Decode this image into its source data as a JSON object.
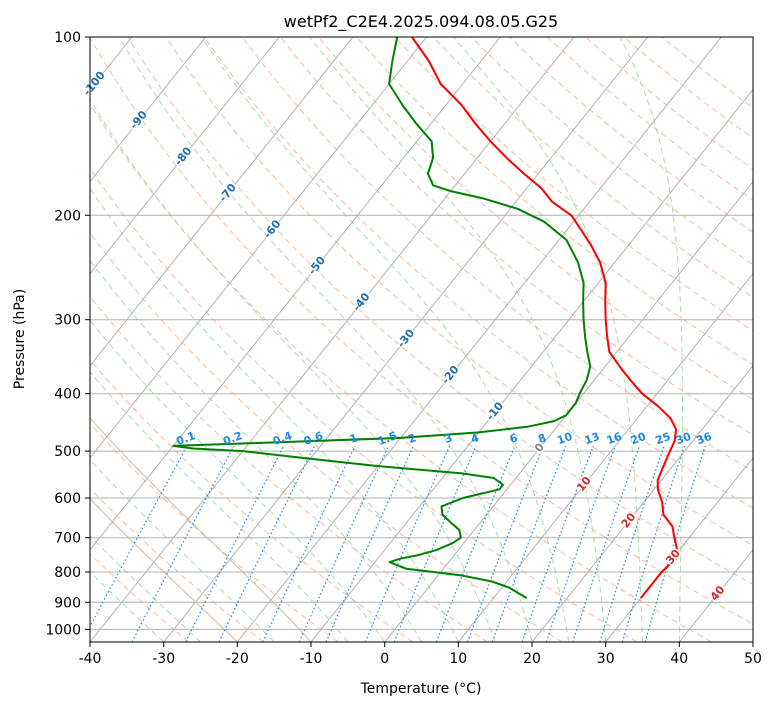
{
  "chart_data": {
    "type": "line",
    "title": "wetPf2_C2E4.2025.094.08.05.G25",
    "xlabel": "Temperature (°C)",
    "ylabel": "Pressure (hPa)",
    "xlim": [
      -40,
      50
    ],
    "ylim": [
      1050,
      100
    ],
    "y_scale": "log",
    "x_ticks": [
      "-40",
      "-30",
      "-20",
      "-10",
      "0",
      "10",
      "20",
      "30",
      "40",
      "50"
    ],
    "y_ticks": [
      "100",
      "200",
      "300",
      "400",
      "500",
      "600",
      "700",
      "800",
      "900",
      "1000"
    ],
    "grid": true,
    "series": [
      {
        "color": "#ff0000",
        "points": [
          [
            30,
            885
          ],
          [
            30,
            850
          ],
          [
            30,
            800
          ],
          [
            30.5,
            760
          ],
          [
            29.5,
            730
          ],
          [
            28,
            700
          ],
          [
            26.5,
            670
          ],
          [
            24,
            640
          ],
          [
            22.5,
            610
          ],
          [
            20.5,
            580
          ],
          [
            19.5,
            560
          ],
          [
            19,
            540
          ],
          [
            18.5,
            520
          ],
          [
            18,
            500
          ],
          [
            17.5,
            480
          ],
          [
            16.5,
            460
          ],
          [
            14.5,
            440
          ],
          [
            11.5,
            420
          ],
          [
            8,
            400
          ],
          [
            5,
            380
          ],
          [
            2,
            360
          ],
          [
            -1,
            340
          ],
          [
            -3,
            320
          ],
          [
            -5,
            300
          ],
          [
            -7,
            280
          ],
          [
            -9,
            260
          ],
          [
            -12,
            240
          ],
          [
            -15,
            225
          ],
          [
            -18,
            212
          ],
          [
            -21,
            200
          ],
          [
            -25,
            190
          ],
          [
            -28,
            180
          ],
          [
            -32,
            170
          ],
          [
            -36,
            160
          ],
          [
            -40,
            150
          ],
          [
            -44,
            140
          ],
          [
            -48,
            130
          ],
          [
            -53,
            120
          ],
          [
            -57,
            110
          ],
          [
            -62,
            100
          ]
        ]
      },
      {
        "color": "#008000",
        "points": [
          [
            14.5,
            885
          ],
          [
            13,
            870
          ],
          [
            12,
            860
          ],
          [
            11,
            850
          ],
          [
            8,
            830
          ],
          [
            3,
            810
          ],
          [
            -5,
            790
          ],
          [
            -8,
            770
          ],
          [
            -7,
            760
          ],
          [
            -5,
            750
          ],
          [
            -3,
            735
          ],
          [
            -1.5,
            715
          ],
          [
            -1,
            700
          ],
          [
            -2,
            680
          ],
          [
            -4,
            660
          ],
          [
            -6,
            640
          ],
          [
            -7,
            620
          ],
          [
            -5,
            600
          ],
          [
            -1,
            580
          ],
          [
            -1,
            570
          ],
          [
            -3,
            555
          ],
          [
            -8,
            545
          ],
          [
            -20,
            530
          ],
          [
            -30,
            515
          ],
          [
            -40,
            500
          ],
          [
            -47,
            495
          ],
          [
            -50,
            490
          ],
          [
            -40,
            485
          ],
          [
            -20,
            475
          ],
          [
            -10,
            465
          ],
          [
            -4,
            455
          ],
          [
            -1,
            445
          ],
          [
            0,
            435
          ],
          [
            0,
            425
          ],
          [
            0,
            415
          ],
          [
            -0.5,
            400
          ],
          [
            -1,
            380
          ],
          [
            -2,
            360
          ],
          [
            -4,
            340
          ],
          [
            -6,
            320
          ],
          [
            -8,
            300
          ],
          [
            -10,
            280
          ],
          [
            -12,
            260
          ],
          [
            -15,
            240
          ],
          [
            -19,
            220
          ],
          [
            -24,
            205
          ],
          [
            -29,
            195
          ],
          [
            -35,
            187
          ],
          [
            -40,
            182
          ],
          [
            -43,
            178
          ],
          [
            -44,
            174
          ],
          [
            -45,
            170
          ],
          [
            -46,
            160
          ],
          [
            -48,
            150
          ],
          [
            -52,
            140
          ],
          [
            -56,
            130
          ],
          [
            -60,
            120
          ],
          [
            -62,
            110
          ],
          [
            -64,
            100
          ]
        ]
      }
    ],
    "isotherm_labels": [
      "-100",
      "-90",
      "-80",
      "-70",
      "-60",
      "-50",
      "-40",
      "-30",
      "-20",
      "-10",
      "0",
      "10",
      "20",
      "30",
      "40"
    ],
    "mixing_ratio_labels": [
      "0.1",
      "0.2",
      "0.4",
      "0.6",
      "1",
      "1.5",
      "2",
      "3",
      "4",
      "6",
      "8",
      "10",
      "13",
      "16",
      "20",
      "25",
      "30",
      "36"
    ],
    "colors": {
      "temperature": "#ff0000",
      "dewpoint": "#008000",
      "isotherm_label_cold": "#1f6fb0",
      "isotherm_label_warm": "#d62728",
      "isotherm_label_zero": "#7f7f7f",
      "mixing_ratio": "#1e88e5",
      "dry_adiabat": "#f4a582",
      "moist_adiabat": "#9fd69f",
      "grid": "#b0b0b0",
      "wide_arc": "#d8c5a8"
    }
  }
}
